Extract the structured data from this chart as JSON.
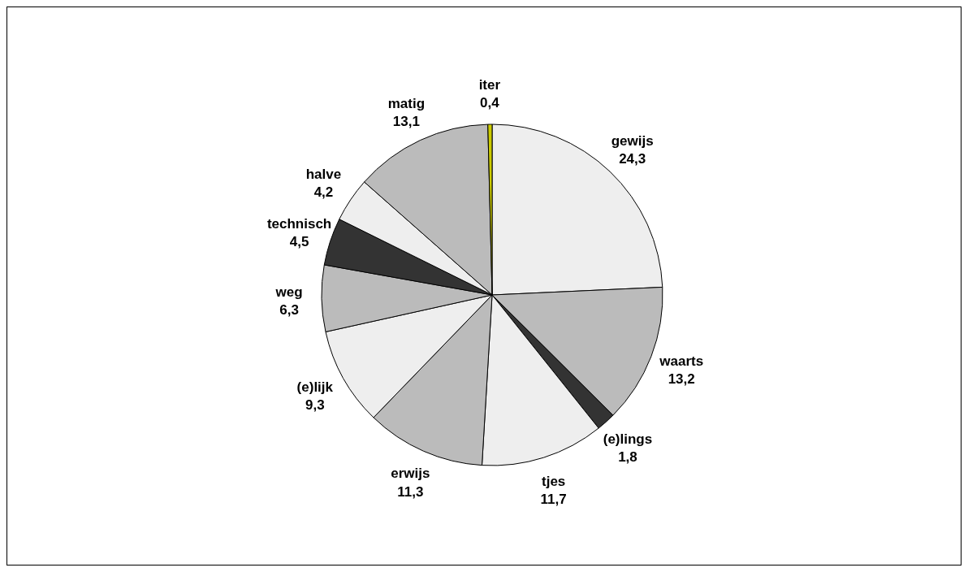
{
  "chart_data": {
    "type": "pie",
    "categories": [
      "gewijs",
      "waarts",
      "(e)lings",
      "tjes",
      "erwijs",
      "(e)lijk",
      "weg",
      "technisch",
      "halve",
      "matig",
      "iter"
    ],
    "values": [
      24.3,
      13.2,
      1.8,
      11.7,
      11.3,
      9.3,
      6.3,
      4.5,
      4.2,
      13.1,
      0.4
    ],
    "colors": [
      "#eeeeee",
      "#bbbbbb",
      "#333333",
      "#eeeeee",
      "#bbbbbb",
      "#eeeeee",
      "#bbbbbb",
      "#333333",
      "#eeeeee",
      "#bbbbbb",
      "#cccc00"
    ],
    "value_labels": [
      "24,3",
      "13,2",
      "1,8",
      "11,7",
      "11,3",
      "9,3",
      "6,3",
      "4,5",
      "4,2",
      "13,1",
      "0,4"
    ]
  }
}
